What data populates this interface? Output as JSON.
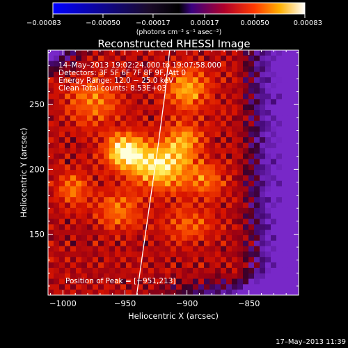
{
  "chart_data": {
    "type": "heatmap",
    "title": "Reconstructed RHESSI Image",
    "xlabel": "Heliocentric X (arcsec)",
    "ylabel": "Heliocentric Y (arcsec)",
    "xlim": [
      -1012,
      -810
    ],
    "ylim": [
      103,
      292
    ],
    "xticks": [
      -1000,
      -950,
      -900,
      -850
    ],
    "xtick_labels": [
      "−1000",
      "−950",
      "−900",
      "−850"
    ],
    "yticks": [
      150,
      200,
      250
    ],
    "ytick_labels": [
      "150",
      "200",
      "250"
    ],
    "colorbar": {
      "ticks": [
        -0.00083,
        -0.0005,
        -0.00017,
        0.00017,
        0.0005,
        0.00083
      ],
      "tick_labels": [
        "−0.00083",
        "−0.00050",
        "−0.00017",
        "0.00017",
        "0.00050",
        "0.00083"
      ],
      "units_label": "(photons cm⁻² s⁻¹ asec⁻²)",
      "range": [
        -0.00083,
        0.00083
      ]
    },
    "annotations": [
      "14–May–2013 19:02:24.000 to 19:07:58.000",
      "Detectors: 3F 5F 6F 7F 8F 9F, Att 0",
      "Energy Range: 12.0 − 25.0 keV",
      "Clean     Total counts: 8.53E+03"
    ],
    "peak_label": "Position of Peak = [−951,213]",
    "peak": {
      "x": -951,
      "y": 213
    },
    "emission_sources": [
      {
        "x": -950,
        "y": 214,
        "sx": 11,
        "sy": 9,
        "amp": 1.0
      },
      {
        "x": -922,
        "y": 202,
        "sx": 16,
        "sy": 12,
        "amp": 0.9
      },
      {
        "x": -903,
        "y": 222,
        "sx": 10,
        "sy": 10,
        "amp": 0.55
      },
      {
        "x": -900,
        "y": 262,
        "sx": 12,
        "sy": 11,
        "amp": 0.65
      },
      {
        "x": -975,
        "y": 252,
        "sx": 14,
        "sy": 12,
        "amp": 0.5
      },
      {
        "x": -992,
        "y": 185,
        "sx": 9,
        "sy": 9,
        "amp": 0.45
      },
      {
        "x": -955,
        "y": 168,
        "sx": 13,
        "sy": 10,
        "amp": 0.45
      },
      {
        "x": -885,
        "y": 192,
        "sx": 10,
        "sy": 9,
        "amp": 0.45
      },
      {
        "x": -900,
        "y": 158,
        "sx": 14,
        "sy": 10,
        "amp": 0.35
      }
    ],
    "limb_curve": {
      "x": [
        -940.5,
        -935,
        -929,
        -923,
        -917.5,
        -914
      ],
      "y": [
        103,
        140,
        180,
        220,
        260,
        292
      ]
    },
    "footer": "17–May–2013 11:39"
  }
}
